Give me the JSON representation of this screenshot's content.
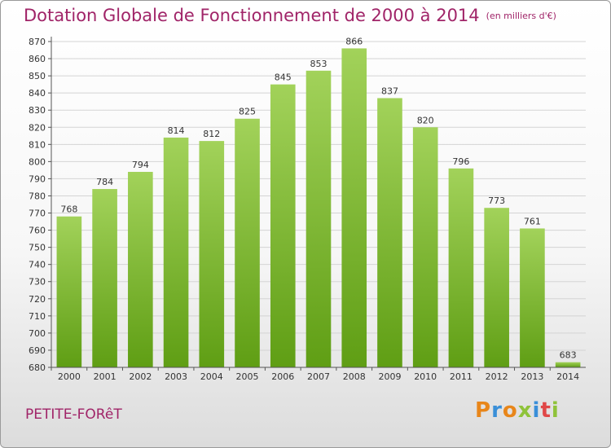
{
  "chart_data": {
    "type": "bar",
    "title": "Dotation Globale de Fonctionnement de 2000 à 2014",
    "subtitle": "(en milliers d'€)",
    "categories": [
      "2000",
      "2001",
      "2002",
      "2003",
      "2004",
      "2005",
      "2006",
      "2007",
      "2008",
      "2009",
      "2010",
      "2011",
      "2012",
      "2013",
      "2014"
    ],
    "values": [
      768,
      784,
      794,
      814,
      812,
      825,
      845,
      853,
      866,
      837,
      820,
      796,
      773,
      761,
      683
    ],
    "ylim": [
      680,
      870
    ],
    "yticks": [
      680,
      690,
      700,
      710,
      720,
      730,
      740,
      750,
      760,
      770,
      780,
      790,
      800,
      810,
      820,
      830,
      840,
      850,
      860,
      870
    ],
    "grid": true,
    "colors": {
      "bar_top": "#a2d25a",
      "bar_bottom": "#5f9e14",
      "title": "#a02468"
    }
  },
  "commune": "PETITE-FORêT",
  "logo": {
    "letters": [
      "P",
      "r",
      "o",
      "x",
      "i",
      "t",
      "i"
    ]
  }
}
